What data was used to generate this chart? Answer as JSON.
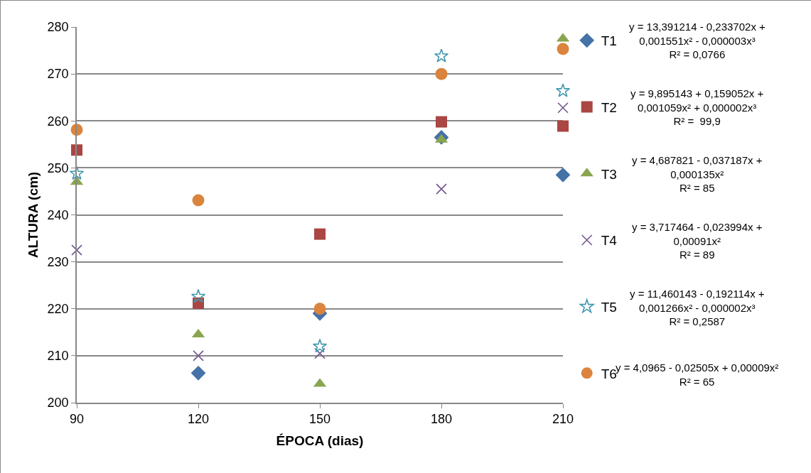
{
  "chart_data": {
    "type": "scatter",
    "xlabel": "ÉPOCA (dias)",
    "ylabel": "ALTURA (cm)",
    "x": [
      90,
      120,
      150,
      180,
      210
    ],
    "xlim": [
      90,
      210
    ],
    "xticks": [
      90,
      120,
      150,
      180,
      210
    ],
    "ylim": [
      200,
      280
    ],
    "yticks": [
      200,
      210,
      220,
      230,
      240,
      250,
      260,
      270,
      280
    ],
    "grid": "y",
    "legend": "right",
    "series": [
      {
        "name": "T1",
        "color": "#4572a7",
        "marker": "diamond",
        "values": [
          null,
          206.3,
          219,
          256.5,
          248.5
        ]
      },
      {
        "name": "T2",
        "color": "#aa4643",
        "marker": "square",
        "values": [
          253.8,
          221.2,
          235.9,
          259.8,
          258.9
        ]
      },
      {
        "name": "T3",
        "color": "#89a54e",
        "marker": "triangle",
        "values": [
          247,
          214.5,
          204,
          256,
          277.5
        ]
      },
      {
        "name": "T4",
        "color": "#71588f",
        "marker": "cross",
        "values": [
          232.5,
          210,
          210.5,
          245.5,
          262.8
        ]
      },
      {
        "name": "T5",
        "color": "#4198af",
        "marker": "star",
        "values": [
          248.8,
          222.6,
          212,
          273.8,
          266.4
        ]
      },
      {
        "name": "T6",
        "color": "#db843d",
        "marker": "circle",
        "values": [
          258.1,
          243.1,
          220,
          270,
          275.3
        ]
      }
    ],
    "annotations": [
      "y = 13,391214 - 0,233702x +\n0,001551x² - 0,000003x³\nR² = 0,0766",
      "y = 9,895143 + 0,159052x +\n0,001059x² + 0,000002x³\nR² =  99,9",
      "y = 4,687821 - 0,037187x +\n0,000135x²\nR² = 85",
      "y = 3,717464 - 0,023994x +\n0,00091x²\nR² = 89",
      "y = 11,460143 - 0,192114x +\n0,001266x² - 0,000002x³\nR² = 0,2587",
      "y = 4,0965 - 0,02505x + 0,00009x²\nR² = 65"
    ]
  }
}
